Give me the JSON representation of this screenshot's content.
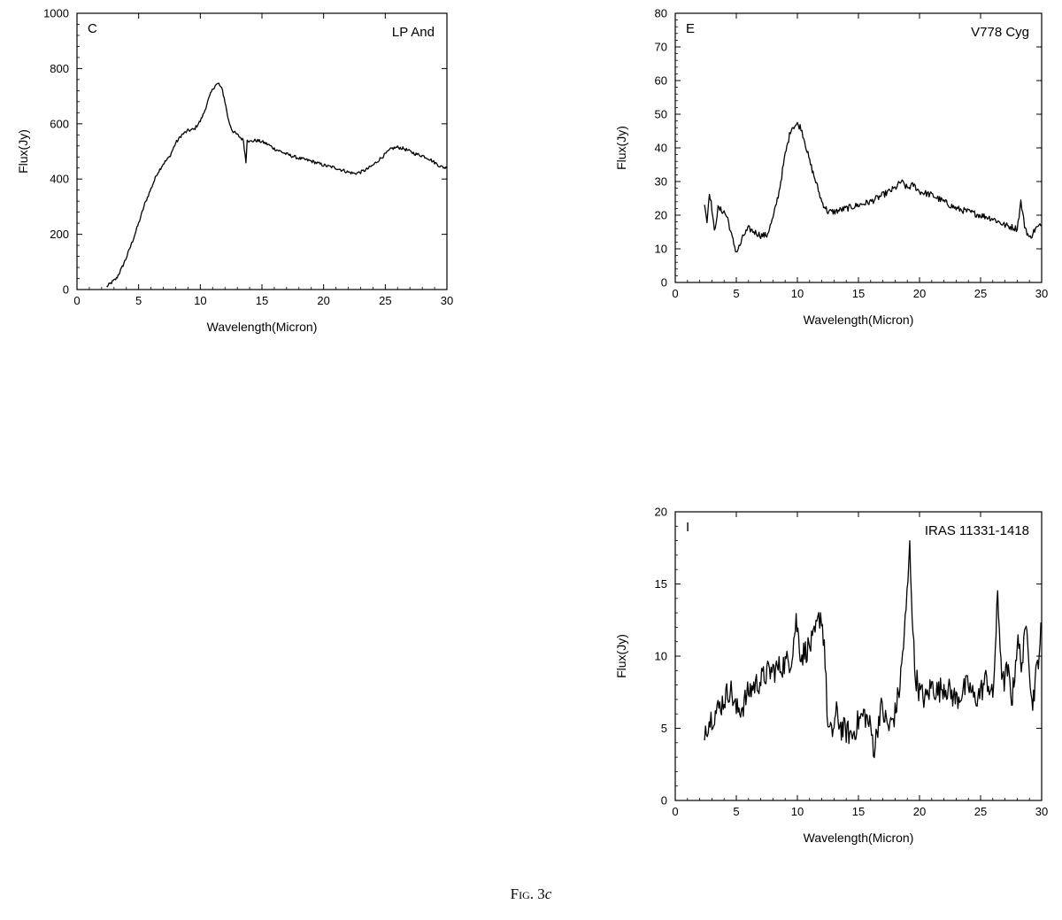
{
  "figure": {
    "caption_prefix": "Fig.",
    "caption_number": "3",
    "caption_letter": "c"
  },
  "chart_data": [
    {
      "type": "line",
      "panel_letter": "C",
      "annotation": "LP And",
      "xlabel": "Wavelength(Micron)",
      "ylabel": "Flux(Jy)",
      "xlim": [
        0,
        30
      ],
      "ylim": [
        0,
        1000
      ],
      "xticks": [
        0,
        5,
        10,
        15,
        20,
        25,
        30
      ],
      "yticks": [
        0,
        200,
        400,
        600,
        800,
        1000
      ],
      "noise": 0.006,
      "series": [
        {
          "x": [
            2.4,
            2.8,
            3.2,
            3.6,
            4.0,
            4.5,
            5.0,
            5.5,
            6.0,
            6.5,
            7.0,
            7.5,
            8.0,
            8.5,
            9.0,
            9.5,
            10.0,
            10.3,
            10.6,
            10.9,
            11.2,
            11.5,
            11.8,
            12.0,
            12.3,
            12.6,
            13.0,
            13.5,
            13.7,
            13.8,
            14.0,
            14.5,
            15.0,
            15.5,
            16.0,
            17.0,
            18.0,
            19.0,
            20.0,
            21.0,
            22.0,
            22.5,
            23.0,
            23.5,
            24.0,
            24.5,
            25.0,
            25.5,
            26.0,
            26.5,
            27.0,
            27.5,
            28.0,
            28.5,
            29.0,
            29.5,
            30.0
          ],
          "values": [
            10,
            25,
            40,
            75,
            115,
            175,
            240,
            310,
            365,
            420,
            455,
            480,
            530,
            560,
            575,
            580,
            610,
            640,
            680,
            715,
            740,
            745,
            720,
            680,
            610,
            575,
            560,
            540,
            460,
            545,
            535,
            540,
            535,
            525,
            510,
            490,
            475,
            465,
            450,
            440,
            425,
            420,
            425,
            435,
            450,
            470,
            490,
            510,
            515,
            510,
            500,
            490,
            485,
            475,
            460,
            445,
            440
          ]
        }
      ]
    },
    {
      "type": "line",
      "panel_letter": "E",
      "annotation": "V778 Cyg",
      "xlabel": "Wavelength(Micron)",
      "ylabel": "Flux(Jy)",
      "xlim": [
        0,
        30
      ],
      "ylim": [
        0,
        80
      ],
      "xticks": [
        0,
        5,
        10,
        15,
        20,
        25,
        30
      ],
      "yticks": [
        0,
        10,
        20,
        30,
        40,
        50,
        60,
        70,
        80
      ],
      "noise": 0.012,
      "series": [
        {
          "x": [
            2.4,
            2.6,
            2.8,
            3.0,
            3.2,
            3.5,
            4.0,
            4.3,
            4.6,
            5.0,
            5.3,
            5.6,
            6.0,
            6.5,
            7.0,
            7.5,
            8.0,
            8.5,
            9.0,
            9.5,
            10.0,
            10.3,
            10.6,
            11.0,
            11.5,
            12.0,
            12.5,
            13.0,
            14.0,
            15.0,
            16.0,
            17.0,
            18.0,
            18.5,
            19.0,
            19.5,
            20.0,
            21.0,
            22.0,
            23.0,
            24.0,
            25.0,
            26.0,
            27.0,
            28.0,
            28.3,
            28.6,
            29.0,
            29.5,
            30.0
          ],
          "values": [
            24,
            18,
            27,
            22,
            15,
            22,
            21,
            19,
            14,
            9,
            11,
            14,
            16,
            15,
            14,
            14,
            19,
            27,
            38,
            46,
            47,
            46,
            42,
            36,
            30,
            24,
            21,
            21,
            22,
            23,
            24,
            26,
            28,
            30,
            28,
            29,
            27,
            26,
            24,
            22,
            21,
            20,
            19,
            17,
            16,
            24,
            17,
            13,
            16,
            17
          ]
        }
      ]
    },
    {
      "type": "line",
      "panel_letter": "I",
      "annotation": "IRAS 11331-1418",
      "xlabel": "Wavelength(Micron)",
      "ylabel": "Flux(Jy)",
      "xlim": [
        0,
        30
      ],
      "ylim": [
        0,
        20
      ],
      "xticks": [
        0,
        5,
        10,
        15,
        20,
        25,
        30
      ],
      "yticks": [
        0,
        5,
        10,
        15,
        20
      ],
      "noise": 0.045,
      "series": [
        {
          "x": [
            2.4,
            3.0,
            3.5,
            4.0,
            4.5,
            5.0,
            5.5,
            6.0,
            6.5,
            7.0,
            7.5,
            8.0,
            8.5,
            9.0,
            9.5,
            9.9,
            10.3,
            10.8,
            11.3,
            11.9,
            12.2,
            12.5,
            12.8,
            13.2,
            13.6,
            14.0,
            14.5,
            15.0,
            15.5,
            16.0,
            16.3,
            16.8,
            17.5,
            18.0,
            18.4,
            18.9,
            19.2,
            19.6,
            20.0,
            20.5,
            21.0,
            21.5,
            22.0,
            22.5,
            23.0,
            23.5,
            24.0,
            24.5,
            25.0,
            25.5,
            26.0,
            26.4,
            26.8,
            27.2,
            27.6,
            28.0,
            28.4,
            28.8,
            29.2,
            29.6,
            30.0
          ],
          "values": [
            5.0,
            5.8,
            6.3,
            7.0,
            7.8,
            6.2,
            6.5,
            7.5,
            8.0,
            8.3,
            8.8,
            9.0,
            9.2,
            9.5,
            9.8,
            12.5,
            10.0,
            10.5,
            11.0,
            13.0,
            11.0,
            5.0,
            4.5,
            6.0,
            5.0,
            4.8,
            4.5,
            5.5,
            6.0,
            5.0,
            3.5,
            6.5,
            5.0,
            6.0,
            8.0,
            13.0,
            17.5,
            9.0,
            7.5,
            7.0,
            8.0,
            7.5,
            8.0,
            7.5,
            7.0,
            7.5,
            8.0,
            7.0,
            7.5,
            8.5,
            7.0,
            14.0,
            8.0,
            9.0,
            7.0,
            11.0,
            9.5,
            12.5,
            6.5,
            9.0,
            12.0
          ]
        }
      ]
    }
  ]
}
